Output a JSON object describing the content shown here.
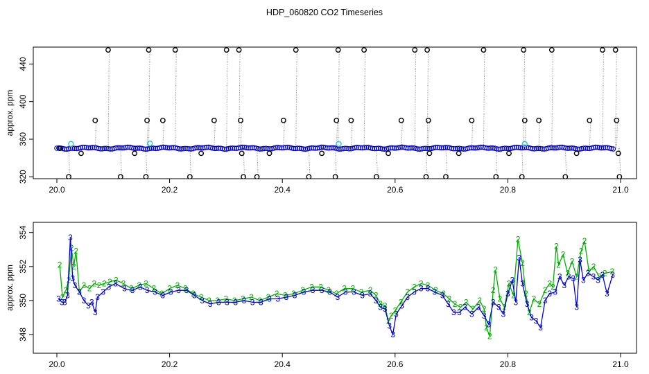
{
  "title": "HDP_060820  CO2 Timeseries",
  "colors": {
    "black": "#000000",
    "gray": "#8c8c8c",
    "blue": "#0000cc",
    "cyan": "#33cccc",
    "green": "#00b000"
  },
  "chart_data": [
    {
      "type": "scatter",
      "ylabel": "approx. ppm",
      "xlim": [
        20.0,
        21.0
      ],
      "ylim": [
        318,
        458
      ],
      "xticks": [
        "20.0",
        "20.2",
        "20.4",
        "20.6",
        "20.8",
        "21.0"
      ],
      "xtick_values": [
        20.0,
        20.2,
        20.4,
        20.6,
        20.8,
        21.0
      ],
      "yticks": [
        "320",
        "360",
        "400",
        "440"
      ],
      "ytick_values": [
        320,
        360,
        400,
        440
      ],
      "grid": false,
      "series": [
        {
          "marker": "open-circle",
          "color": "black",
          "points": [
            [
              20.005,
              350.3
            ],
            [
              20.021,
              320
            ],
            [
              20.043,
              345
            ],
            [
              20.068,
              380
            ],
            [
              20.091,
              455
            ],
            [
              20.113,
              320
            ],
            [
              20.138,
              345
            ],
            [
              20.158,
              320
            ],
            [
              20.16,
              380
            ],
            [
              20.163,
              455
            ],
            [
              20.188,
              380
            ],
            [
              20.21,
              455
            ],
            [
              20.236,
              320
            ],
            [
              20.256,
              345
            ],
            [
              20.279,
              380
            ],
            [
              20.301,
              455
            ],
            [
              20.323,
              455
            ],
            [
              20.326,
              380
            ],
            [
              20.328,
              345
            ],
            [
              20.331,
              320
            ],
            [
              20.355,
              320
            ],
            [
              20.377,
              345
            ],
            [
              20.402,
              380
            ],
            [
              20.424,
              455
            ],
            [
              20.447,
              320
            ],
            [
              20.47,
              345
            ],
            [
              20.494,
              320
            ],
            [
              20.496,
              380
            ],
            [
              20.499,
              455
            ],
            [
              20.522,
              380
            ],
            [
              20.545,
              455
            ],
            [
              20.567,
              320
            ],
            [
              20.588,
              345
            ],
            [
              20.611,
              380
            ],
            [
              20.635,
              455
            ],
            [
              20.655,
              320
            ],
            [
              20.657,
              455
            ],
            [
              20.659,
              380
            ],
            [
              20.661,
              345
            ],
            [
              20.69,
              320
            ],
            [
              20.713,
              345
            ],
            [
              20.736,
              380
            ],
            [
              20.757,
              455
            ],
            [
              20.779,
              320
            ],
            [
              20.802,
              345
            ],
            [
              20.825,
              320
            ],
            [
              20.828,
              455
            ],
            [
              20.83,
              380
            ],
            [
              20.855,
              380
            ],
            [
              20.878,
              455
            ],
            [
              20.902,
              320
            ],
            [
              20.922,
              345
            ],
            [
              20.945,
              380
            ],
            [
              20.968,
              455
            ],
            [
              20.991,
              455
            ],
            [
              20.993,
              380
            ],
            [
              20.996,
              345
            ],
            [
              20.998,
              320
            ]
          ]
        },
        {
          "marker": "open-circle",
          "color": "cyan",
          "points": [
            [
              20.025,
              355
            ],
            [
              20.165,
              355.5
            ],
            [
              20.5,
              355
            ],
            [
              20.83,
              355
            ]
          ]
        },
        {
          "marker": "open-circle-band",
          "color": "blue",
          "x_range": [
            20.0,
            20.99
          ],
          "y": 350.5
        }
      ]
    },
    {
      "type": "line",
      "ylabel": "approx. ppm",
      "xlim": [
        20.0,
        21.0
      ],
      "ylim": [
        346.9,
        354.6
      ],
      "xticks": [
        "20.0",
        "20.2",
        "20.4",
        "20.6",
        "20.8",
        "21.0"
      ],
      "xtick_values": [
        20.0,
        20.2,
        20.4,
        20.6,
        20.8,
        21.0
      ],
      "yticks": [
        "348",
        "350",
        "352",
        "354"
      ],
      "ytick_values": [
        348,
        350,
        352,
        354
      ],
      "grid": false,
      "series": [
        {
          "marker_label": "2",
          "color": "green",
          "points": [
            [
              20.005,
              352.1
            ],
            [
              20.01,
              350.2
            ],
            [
              20.016,
              350.6
            ],
            [
              20.021,
              351.2
            ],
            [
              20.026,
              353.1
            ],
            [
              20.03,
              352.0
            ],
            [
              20.034,
              352.9
            ],
            [
              20.04,
              350.5
            ],
            [
              20.048,
              350.9
            ],
            [
              20.058,
              350.7
            ],
            [
              20.066,
              351.0
            ],
            [
              20.075,
              350.9
            ],
            [
              20.084,
              351.0
            ],
            [
              20.094,
              351.1
            ],
            [
              20.105,
              351.2
            ],
            [
              20.118,
              351.0
            ],
            [
              20.132,
              350.7
            ],
            [
              20.146,
              350.9
            ],
            [
              20.158,
              351.0
            ],
            [
              20.172,
              350.7
            ],
            [
              20.186,
              350.4
            ],
            [
              20.2,
              350.7
            ],
            [
              20.214,
              350.9
            ],
            [
              20.228,
              350.7
            ],
            [
              20.242,
              350.4
            ],
            [
              20.256,
              350.2
            ],
            [
              20.27,
              350.0
            ],
            [
              20.285,
              350.0
            ],
            [
              20.3,
              350.1
            ],
            [
              20.315,
              350.0
            ],
            [
              20.33,
              350.1
            ],
            [
              20.345,
              350.2
            ],
            [
              20.36,
              350.0
            ],
            [
              20.375,
              350.2
            ],
            [
              20.39,
              350.4
            ],
            [
              20.405,
              350.3
            ],
            [
              20.42,
              350.4
            ],
            [
              20.436,
              350.6
            ],
            [
              20.452,
              350.8
            ],
            [
              20.468,
              350.8
            ],
            [
              20.482,
              350.6
            ],
            [
              20.496,
              350.4
            ],
            [
              20.51,
              350.7
            ],
            [
              20.525,
              350.7
            ],
            [
              20.54,
              350.5
            ],
            [
              20.556,
              350.6
            ],
            [
              20.566,
              350.3
            ],
            [
              20.574,
              349.8
            ],
            [
              20.582,
              349.7
            ],
            [
              20.588,
              348.8
            ],
            [
              20.593,
              349.1
            ],
            [
              20.6,
              349.4
            ],
            [
              20.61,
              349.9
            ],
            [
              20.622,
              350.5
            ],
            [
              20.634,
              350.8
            ],
            [
              20.646,
              351.0
            ],
            [
              20.658,
              350.9
            ],
            [
              20.672,
              350.6
            ],
            [
              20.686,
              350.4
            ],
            [
              20.696,
              350.1
            ],
            [
              20.706,
              349.8
            ],
            [
              20.716,
              349.6
            ],
            [
              20.726,
              349.9
            ],
            [
              20.738,
              349.5
            ],
            [
              20.75,
              350.0
            ],
            [
              20.758,
              349.5
            ],
            [
              20.762,
              348.4
            ],
            [
              20.768,
              347.9
            ],
            [
              20.774,
              350.6
            ],
            [
              20.778,
              351.8
            ],
            [
              20.786,
              350.1
            ],
            [
              20.794,
              349.6
            ],
            [
              20.802,
              351.0
            ],
            [
              20.81,
              350.3
            ],
            [
              20.818,
              353.6
            ],
            [
              20.826,
              352.2
            ],
            [
              20.832,
              350.4
            ],
            [
              20.838,
              349.3
            ],
            [
              20.846,
              350.1
            ],
            [
              20.856,
              349.8
            ],
            [
              20.866,
              350.6
            ],
            [
              20.874,
              351.0
            ],
            [
              20.88,
              350.8
            ],
            [
              20.886,
              353.2
            ],
            [
              20.89,
              352.1
            ],
            [
              20.898,
              352.7
            ],
            [
              20.906,
              351.6
            ],
            [
              20.914,
              352.3
            ],
            [
              20.922,
              351.4
            ],
            [
              20.93,
              352.9
            ],
            [
              20.936,
              353.5
            ],
            [
              20.944,
              351.7
            ],
            [
              20.952,
              352.0
            ],
            [
              20.962,
              351.4
            ],
            [
              20.972,
              351.6
            ],
            [
              20.985,
              351.7
            ]
          ]
        },
        {
          "marker_label": "3",
          "color": "blue",
          "points": [
            [
              20.003,
              350.1
            ],
            [
              20.009,
              349.9
            ],
            [
              20.014,
              349.9
            ],
            [
              20.019,
              350.3
            ],
            [
              20.024,
              353.7
            ],
            [
              20.028,
              351.3
            ],
            [
              20.032,
              350.9
            ],
            [
              20.04,
              350.5
            ],
            [
              20.048,
              350.0
            ],
            [
              20.056,
              349.7
            ],
            [
              20.062,
              349.9
            ],
            [
              20.068,
              349.3
            ],
            [
              20.072,
              350.2
            ],
            [
              20.082,
              350.5
            ],
            [
              20.092,
              350.8
            ],
            [
              20.104,
              351.0
            ],
            [
              20.12,
              350.7
            ],
            [
              20.134,
              350.6
            ],
            [
              20.148,
              350.8
            ],
            [
              20.16,
              350.6
            ],
            [
              20.174,
              350.5
            ],
            [
              20.188,
              350.3
            ],
            [
              20.202,
              350.5
            ],
            [
              20.216,
              350.6
            ],
            [
              20.23,
              350.6
            ],
            [
              20.244,
              350.3
            ],
            [
              20.258,
              350.0
            ],
            [
              20.272,
              349.8
            ],
            [
              20.287,
              349.9
            ],
            [
              20.302,
              349.9
            ],
            [
              20.317,
              349.9
            ],
            [
              20.332,
              350.0
            ],
            [
              20.347,
              349.9
            ],
            [
              20.362,
              349.9
            ],
            [
              20.377,
              350.1
            ],
            [
              20.392,
              350.1
            ],
            [
              20.407,
              350.2
            ],
            [
              20.422,
              350.3
            ],
            [
              20.438,
              350.5
            ],
            [
              20.454,
              350.6
            ],
            [
              20.47,
              350.6
            ],
            [
              20.484,
              350.5
            ],
            [
              20.498,
              350.2
            ],
            [
              20.512,
              350.5
            ],
            [
              20.527,
              350.5
            ],
            [
              20.542,
              350.3
            ],
            [
              20.556,
              350.4
            ],
            [
              20.566,
              350.0
            ],
            [
              20.574,
              349.6
            ],
            [
              20.582,
              349.5
            ],
            [
              20.59,
              348.5
            ],
            [
              20.596,
              348.0
            ],
            [
              20.602,
              349.2
            ],
            [
              20.612,
              349.7
            ],
            [
              20.622,
              350.2
            ],
            [
              20.634,
              350.5
            ],
            [
              20.646,
              350.7
            ],
            [
              20.658,
              350.7
            ],
            [
              20.67,
              350.5
            ],
            [
              20.684,
              350.3
            ],
            [
              20.694,
              349.8
            ],
            [
              20.704,
              349.3
            ],
            [
              20.714,
              349.3
            ],
            [
              20.724,
              349.6
            ],
            [
              20.736,
              349.2
            ],
            [
              20.748,
              349.6
            ],
            [
              20.758,
              349.1
            ],
            [
              20.766,
              348.6
            ],
            [
              20.774,
              349.9
            ],
            [
              20.784,
              349.6
            ],
            [
              20.792,
              349.2
            ],
            [
              20.8,
              350.4
            ],
            [
              20.808,
              351.2
            ],
            [
              20.814,
              349.9
            ],
            [
              20.82,
              352.5
            ],
            [
              20.826,
              351.0
            ],
            [
              20.834,
              349.8
            ],
            [
              20.842,
              349.0
            ],
            [
              20.85,
              348.8
            ],
            [
              20.858,
              348.4
            ],
            [
              20.866,
              350.0
            ],
            [
              20.874,
              350.4
            ],
            [
              20.884,
              350.5
            ],
            [
              20.892,
              351.4
            ],
            [
              20.9,
              350.9
            ],
            [
              20.908,
              351.4
            ],
            [
              20.916,
              351.3
            ],
            [
              20.922,
              349.6
            ],
            [
              20.928,
              352.4
            ],
            [
              20.934,
              351.2
            ],
            [
              20.942,
              351.6
            ],
            [
              20.952,
              351.4
            ],
            [
              20.96,
              351.2
            ],
            [
              20.968,
              351.5
            ],
            [
              20.976,
              350.4
            ],
            [
              20.986,
              351.5
            ]
          ]
        }
      ]
    }
  ]
}
